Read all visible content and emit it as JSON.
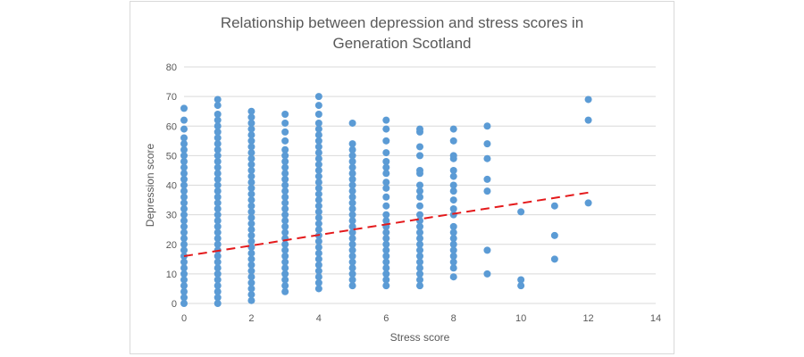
{
  "chart_data": {
    "type": "scatter",
    "title_lines": [
      "Relationship between depression and stress scores in",
      "Generation Scotland"
    ],
    "xlabel": "Stress score",
    "ylabel": "Depression score",
    "xlim": [
      0,
      14
    ],
    "ylim": [
      0,
      80
    ],
    "xticks": [
      0,
      2,
      4,
      6,
      8,
      10,
      12,
      14
    ],
    "yticks": [
      0,
      10,
      20,
      30,
      40,
      50,
      60,
      70,
      80
    ],
    "grid": "horizontal",
    "legend": "none",
    "marker_color": "#5b9bd5",
    "series": [
      {
        "points": [
          [
            0,
            0
          ],
          [
            0,
            2
          ],
          [
            0,
            4
          ],
          [
            0,
            6
          ],
          [
            0,
            8
          ],
          [
            0,
            10
          ],
          [
            0,
            12
          ],
          [
            0,
            14
          ],
          [
            0,
            16
          ],
          [
            0,
            18
          ],
          [
            0,
            20
          ],
          [
            0,
            22
          ],
          [
            0,
            24
          ],
          [
            0,
            26
          ],
          [
            0,
            28
          ],
          [
            0,
            30
          ],
          [
            0,
            32
          ],
          [
            0,
            34
          ],
          [
            0,
            36
          ],
          [
            0,
            38
          ],
          [
            0,
            40
          ],
          [
            0,
            42
          ],
          [
            0,
            44
          ],
          [
            0,
            46
          ],
          [
            0,
            48
          ],
          [
            0,
            50
          ],
          [
            0,
            52
          ],
          [
            0,
            54
          ],
          [
            0,
            56
          ],
          [
            0,
            59
          ],
          [
            0,
            62
          ],
          [
            0,
            66
          ],
          [
            1,
            0
          ],
          [
            1,
            2
          ],
          [
            1,
            4
          ],
          [
            1,
            6
          ],
          [
            1,
            8
          ],
          [
            1,
            10
          ],
          [
            1,
            12
          ],
          [
            1,
            14
          ],
          [
            1,
            16
          ],
          [
            1,
            18
          ],
          [
            1,
            20
          ],
          [
            1,
            22
          ],
          [
            1,
            24
          ],
          [
            1,
            26
          ],
          [
            1,
            28
          ],
          [
            1,
            30
          ],
          [
            1,
            32
          ],
          [
            1,
            34
          ],
          [
            1,
            36
          ],
          [
            1,
            38
          ],
          [
            1,
            40
          ],
          [
            1,
            42
          ],
          [
            1,
            44
          ],
          [
            1,
            46
          ],
          [
            1,
            48
          ],
          [
            1,
            50
          ],
          [
            1,
            52
          ],
          [
            1,
            54
          ],
          [
            1,
            56
          ],
          [
            1,
            58
          ],
          [
            1,
            60
          ],
          [
            1,
            62
          ],
          [
            1,
            64
          ],
          [
            1,
            67
          ],
          [
            1,
            69
          ],
          [
            2,
            1
          ],
          [
            2,
            3
          ],
          [
            2,
            5
          ],
          [
            2,
            7
          ],
          [
            2,
            9
          ],
          [
            2,
            11
          ],
          [
            2,
            13
          ],
          [
            2,
            15
          ],
          [
            2,
            17
          ],
          [
            2,
            19
          ],
          [
            2,
            21
          ],
          [
            2,
            23
          ],
          [
            2,
            25
          ],
          [
            2,
            27
          ],
          [
            2,
            29
          ],
          [
            2,
            31
          ],
          [
            2,
            33
          ],
          [
            2,
            35
          ],
          [
            2,
            37
          ],
          [
            2,
            39
          ],
          [
            2,
            41
          ],
          [
            2,
            43
          ],
          [
            2,
            45
          ],
          [
            2,
            47
          ],
          [
            2,
            49
          ],
          [
            2,
            51
          ],
          [
            2,
            53
          ],
          [
            2,
            55
          ],
          [
            2,
            57
          ],
          [
            2,
            59
          ],
          [
            2,
            61
          ],
          [
            2,
            63
          ],
          [
            2,
            65
          ],
          [
            3,
            4
          ],
          [
            3,
            6
          ],
          [
            3,
            8
          ],
          [
            3,
            10
          ],
          [
            3,
            12
          ],
          [
            3,
            14
          ],
          [
            3,
            16
          ],
          [
            3,
            18
          ],
          [
            3,
            20
          ],
          [
            3,
            22
          ],
          [
            3,
            24
          ],
          [
            3,
            26
          ],
          [
            3,
            28
          ],
          [
            3,
            30
          ],
          [
            3,
            32
          ],
          [
            3,
            34
          ],
          [
            3,
            36
          ],
          [
            3,
            38
          ],
          [
            3,
            40
          ],
          [
            3,
            42
          ],
          [
            3,
            44
          ],
          [
            3,
            46
          ],
          [
            3,
            48
          ],
          [
            3,
            50
          ],
          [
            3,
            52
          ],
          [
            3,
            55
          ],
          [
            3,
            58
          ],
          [
            3,
            61
          ],
          [
            3,
            64
          ],
          [
            4,
            5
          ],
          [
            4,
            7
          ],
          [
            4,
            9
          ],
          [
            4,
            11
          ],
          [
            4,
            13
          ],
          [
            4,
            15
          ],
          [
            4,
            17
          ],
          [
            4,
            19
          ],
          [
            4,
            21
          ],
          [
            4,
            23
          ],
          [
            4,
            25
          ],
          [
            4,
            27
          ],
          [
            4,
            29
          ],
          [
            4,
            31
          ],
          [
            4,
            33
          ],
          [
            4,
            35
          ],
          [
            4,
            37
          ],
          [
            4,
            39
          ],
          [
            4,
            41
          ],
          [
            4,
            43
          ],
          [
            4,
            45
          ],
          [
            4,
            47
          ],
          [
            4,
            49
          ],
          [
            4,
            51
          ],
          [
            4,
            53
          ],
          [
            4,
            55
          ],
          [
            4,
            57
          ],
          [
            4,
            59
          ],
          [
            4,
            61
          ],
          [
            4,
            64
          ],
          [
            4,
            67
          ],
          [
            4,
            70
          ],
          [
            5,
            6
          ],
          [
            5,
            8
          ],
          [
            5,
            10
          ],
          [
            5,
            12
          ],
          [
            5,
            14
          ],
          [
            5,
            16
          ],
          [
            5,
            18
          ],
          [
            5,
            20
          ],
          [
            5,
            22
          ],
          [
            5,
            24
          ],
          [
            5,
            26
          ],
          [
            5,
            28
          ],
          [
            5,
            30
          ],
          [
            5,
            32
          ],
          [
            5,
            34
          ],
          [
            5,
            36
          ],
          [
            5,
            38
          ],
          [
            5,
            40
          ],
          [
            5,
            42
          ],
          [
            5,
            44
          ],
          [
            5,
            46
          ],
          [
            5,
            48
          ],
          [
            5,
            50
          ],
          [
            5,
            52
          ],
          [
            5,
            54
          ],
          [
            5,
            61
          ],
          [
            6,
            6
          ],
          [
            6,
            8
          ],
          [
            6,
            10
          ],
          [
            6,
            12
          ],
          [
            6,
            14
          ],
          [
            6,
            16
          ],
          [
            6,
            18
          ],
          [
            6,
            20
          ],
          [
            6,
            22
          ],
          [
            6,
            24
          ],
          [
            6,
            26
          ],
          [
            6,
            28
          ],
          [
            6,
            30
          ],
          [
            6,
            33
          ],
          [
            6,
            36
          ],
          [
            6,
            39
          ],
          [
            6,
            41
          ],
          [
            6,
            44
          ],
          [
            6,
            46
          ],
          [
            6,
            48
          ],
          [
            6,
            51
          ],
          [
            6,
            55
          ],
          [
            6,
            59
          ],
          [
            6,
            62
          ],
          [
            7,
            6
          ],
          [
            7,
            8
          ],
          [
            7,
            10
          ],
          [
            7,
            12
          ],
          [
            7,
            14
          ],
          [
            7,
            16
          ],
          [
            7,
            18
          ],
          [
            7,
            20
          ],
          [
            7,
            22
          ],
          [
            7,
            24
          ],
          [
            7,
            26
          ],
          [
            7,
            28
          ],
          [
            7,
            30
          ],
          [
            7,
            33
          ],
          [
            7,
            36
          ],
          [
            7,
            38
          ],
          [
            7,
            40
          ],
          [
            7,
            44
          ],
          [
            7,
            45
          ],
          [
            7,
            50
          ],
          [
            7,
            53
          ],
          [
            7,
            58
          ],
          [
            7,
            59
          ],
          [
            8,
            9
          ],
          [
            8,
            12
          ],
          [
            8,
            14
          ],
          [
            8,
            16
          ],
          [
            8,
            18
          ],
          [
            8,
            20
          ],
          [
            8,
            22
          ],
          [
            8,
            24
          ],
          [
            8,
            26
          ],
          [
            8,
            30
          ],
          [
            8,
            32
          ],
          [
            8,
            35
          ],
          [
            8,
            38
          ],
          [
            8,
            40
          ],
          [
            8,
            43
          ],
          [
            8,
            45
          ],
          [
            8,
            49
          ],
          [
            8,
            50
          ],
          [
            8,
            55
          ],
          [
            8,
            59
          ],
          [
            9,
            10
          ],
          [
            9,
            18
          ],
          [
            9,
            38
          ],
          [
            9,
            42
          ],
          [
            9,
            49
          ],
          [
            9,
            54
          ],
          [
            9,
            60
          ],
          [
            10,
            6
          ],
          [
            10,
            8
          ],
          [
            10,
            31
          ],
          [
            11,
            15
          ],
          [
            11,
            23
          ],
          [
            11,
            33
          ],
          [
            12,
            34
          ],
          [
            12,
            62
          ],
          [
            12,
            69
          ]
        ]
      }
    ],
    "trendline": {
      "style": "dashed",
      "color": "#e41a1c",
      "x": [
        0,
        12
      ],
      "y": [
        16,
        37.5
      ]
    }
  }
}
